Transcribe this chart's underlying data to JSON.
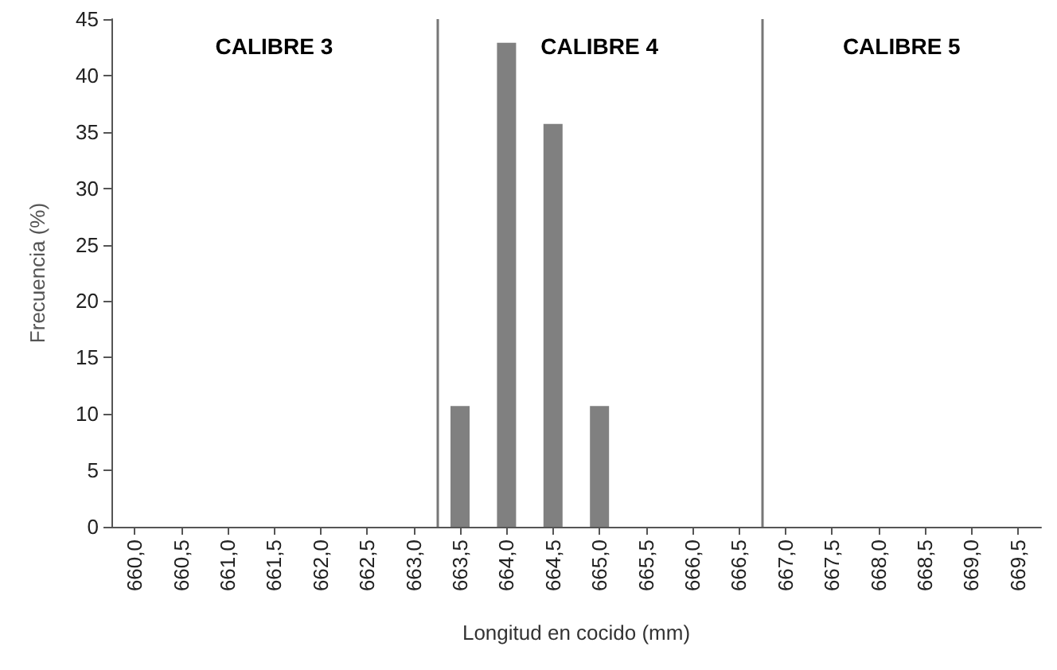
{
  "chart_data": {
    "type": "bar",
    "xlabel": "Longitud en cocido (mm)",
    "ylabel": "Frecuencia (%)",
    "x": [
      660,
      660.5,
      661,
      661.5,
      662,
      662.5,
      663,
      663.5,
      664,
      664.5,
      665,
      665.5,
      666,
      666.5,
      667,
      667.5,
      668,
      668.5,
      669,
      669.5
    ],
    "values": [
      0,
      0,
      0,
      0,
      0,
      0,
      0,
      10.7,
      42.9,
      35.7,
      10.7,
      0,
      0,
      0,
      0,
      0,
      0,
      0,
      0,
      0
    ],
    "color": "#808080",
    "xlim": [
      659.75,
      669.75
    ],
    "xticks": [
      {
        "value": 660,
        "label": "660,0"
      },
      {
        "value": 660.5,
        "label": "660,5"
      },
      {
        "value": 661,
        "label": "661,0"
      },
      {
        "value": 661.5,
        "label": "661,5"
      },
      {
        "value": 662,
        "label": "662,0"
      },
      {
        "value": 662.5,
        "label": "662,5"
      },
      {
        "value": 663,
        "label": "663,0"
      },
      {
        "value": 663.5,
        "label": "663,5"
      },
      {
        "value": 664,
        "label": "664,0"
      },
      {
        "value": 664.5,
        "label": "664,5"
      },
      {
        "value": 665,
        "label": "665,0"
      },
      {
        "value": 665.5,
        "label": "665,5"
      },
      {
        "value": 666,
        "label": "666,0"
      },
      {
        "value": 666.5,
        "label": "666,5"
      },
      {
        "value": 667,
        "label": "667,0"
      },
      {
        "value": 667.5,
        "label": "667,5"
      },
      {
        "value": 668,
        "label": "668,0"
      },
      {
        "value": 668.5,
        "label": "668,5"
      },
      {
        "value": 669,
        "label": "669,0"
      },
      {
        "value": 669.5,
        "label": "669,5"
      }
    ],
    "ylim": [
      0,
      45
    ],
    "yticks": [
      0,
      5,
      10,
      15,
      20,
      25,
      30,
      35,
      40,
      45
    ],
    "ref_lines": [
      {
        "axis": "x",
        "value": 663.25,
        "color": "#777777"
      },
      {
        "axis": "x",
        "value": 666.75,
        "color": "#777777"
      }
    ],
    "annotations": [
      "CALIBRE 3",
      "CALIBRE 4",
      "CALIBRE 5"
    ]
  }
}
